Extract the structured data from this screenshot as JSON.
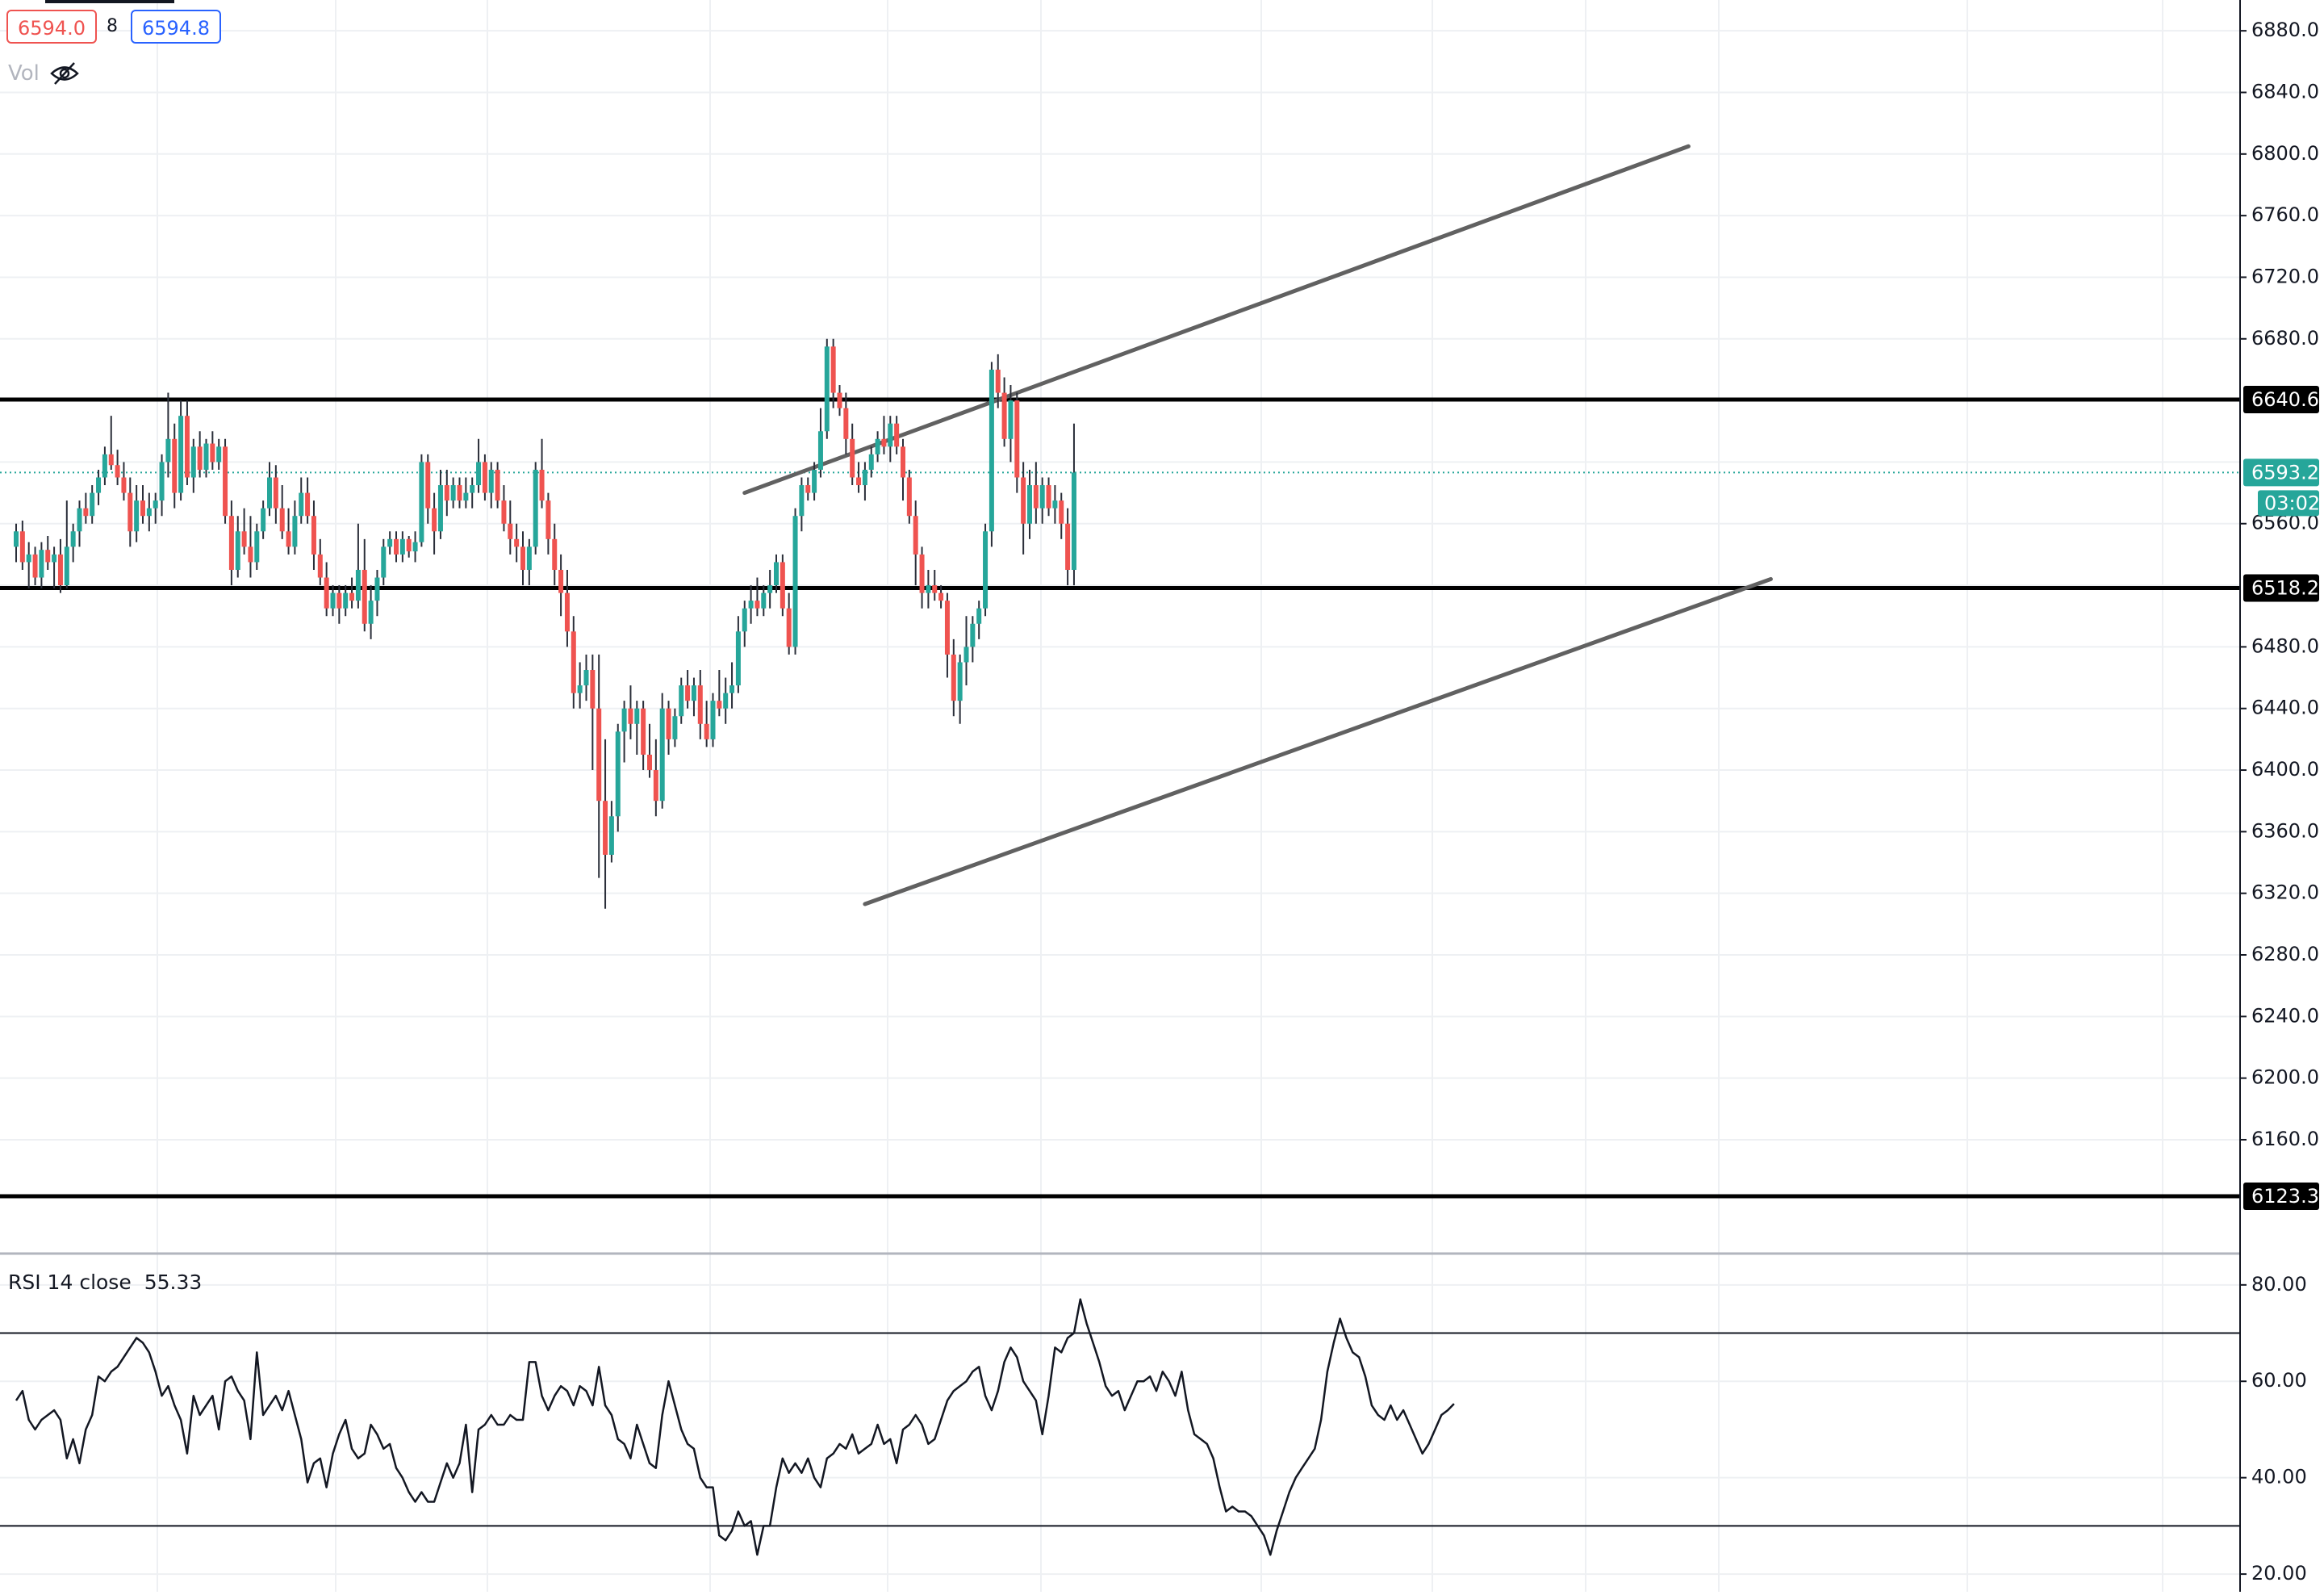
{
  "header": {
    "bid": "6594.0",
    "spread": "8",
    "ask": "6594.8",
    "volume_label": "Vol",
    "volume_icon": "eye-crossed-icon"
  },
  "colors": {
    "up": "#26a69a",
    "down": "#ef5350",
    "channel": "#616161",
    "level": "#000000",
    "current": "#26a69a",
    "grid": "#eef0f3"
  },
  "rsi": {
    "label": "RSI 14 close",
    "value": "55.33",
    "upper_band": 70,
    "lower_band": 30,
    "ticks": [
      "80.00",
      "60.00",
      "40.00",
      "20.00"
    ],
    "ylim": [
      17,
      86
    ]
  },
  "chart_data": {
    "type": "candlestick",
    "ylim": [
      6095,
      6900
    ],
    "y_ticks": [
      "6880.0",
      "6840.0",
      "6800.0",
      "6760.0",
      "6720.0",
      "6680.0",
      "6560.0",
      "6480.0",
      "6440.0",
      "6400.0",
      "6360.0",
      "6320.0",
      "6280.0",
      "6240.0",
      "6200.0",
      "6160.0"
    ],
    "levels": [
      {
        "label": "6640.6",
        "value": 6640.6
      },
      {
        "label": "6518.2",
        "value": 6518.2
      },
      {
        "label": "6123.3",
        "value": 6123.3
      }
    ],
    "current": {
      "price": "6593.2",
      "countdown": "03:02",
      "value": 6593.2
    },
    "channel_upper": {
      "x": [
        115,
        264
      ],
      "y": [
        6580,
        6805
      ]
    },
    "channel_lower": {
      "x": [
        134,
        277
      ],
      "y": [
        6313,
        6524
      ]
    },
    "candles": [
      [
        6545,
        6560,
        6535,
        6555
      ],
      [
        6555,
        6562,
        6530,
        6535
      ],
      [
        6535,
        6548,
        6518,
        6540
      ],
      [
        6540,
        6545,
        6520,
        6525
      ],
      [
        6525,
        6548,
        6518,
        6543
      ],
      [
        6543,
        6552,
        6530,
        6535
      ],
      [
        6535,
        6545,
        6518,
        6540
      ],
      [
        6540,
        6550,
        6515,
        6520
      ],
      [
        6520,
        6575,
        6518,
        6545
      ],
      [
        6545,
        6560,
        6535,
        6555
      ],
      [
        6555,
        6575,
        6545,
        6570
      ],
      [
        6570,
        6580,
        6560,
        6565
      ],
      [
        6565,
        6585,
        6560,
        6580
      ],
      [
        6580,
        6595,
        6572,
        6590
      ],
      [
        6590,
        6610,
        6585,
        6605
      ],
      [
        6605,
        6630,
        6595,
        6598
      ],
      [
        6598,
        6608,
        6585,
        6590
      ],
      [
        6590,
        6600,
        6575,
        6580
      ],
      [
        6580,
        6590,
        6545,
        6555
      ],
      [
        6555,
        6585,
        6548,
        6575
      ],
      [
        6575,
        6585,
        6560,
        6565
      ],
      [
        6565,
        6580,
        6555,
        6570
      ],
      [
        6570,
        6580,
        6560,
        6575
      ],
      [
        6575,
        6605,
        6565,
        6600
      ],
      [
        6600,
        6645,
        6590,
        6615
      ],
      [
        6615,
        6625,
        6570,
        6580
      ],
      [
        6580,
        6640,
        6575,
        6630
      ],
      [
        6630,
        6640,
        6585,
        6590
      ],
      [
        6590,
        6615,
        6580,
        6610
      ],
      [
        6610,
        6620,
        6590,
        6595
      ],
      [
        6595,
        6615,
        6590,
        6612
      ],
      [
        6612,
        6620,
        6595,
        6600
      ],
      [
        6600,
        6615,
        6595,
        6610
      ],
      [
        6610,
        6615,
        6560,
        6565
      ],
      [
        6565,
        6575,
        6520,
        6530
      ],
      [
        6530,
        6565,
        6525,
        6555
      ],
      [
        6555,
        6570,
        6540,
        6545
      ],
      [
        6545,
        6565,
        6525,
        6535
      ],
      [
        6535,
        6560,
        6530,
        6555
      ],
      [
        6555,
        6575,
        6550,
        6570
      ],
      [
        6570,
        6600,
        6565,
        6590
      ],
      [
        6590,
        6598,
        6560,
        6570
      ],
      [
        6570,
        6585,
        6550,
        6555
      ],
      [
        6555,
        6570,
        6540,
        6545
      ],
      [
        6545,
        6575,
        6540,
        6565
      ],
      [
        6565,
        6590,
        6560,
        6580
      ],
      [
        6580,
        6590,
        6560,
        6565
      ],
      [
        6565,
        6575,
        6530,
        6540
      ],
      [
        6540,
        6550,
        6520,
        6525
      ],
      [
        6525,
        6535,
        6500,
        6505
      ],
      [
        6505,
        6520,
        6500,
        6515
      ],
      [
        6515,
        6520,
        6495,
        6505
      ],
      [
        6505,
        6520,
        6500,
        6515
      ],
      [
        6515,
        6525,
        6505,
        6510
      ],
      [
        6510,
        6560,
        6505,
        6530
      ],
      [
        6530,
        6550,
        6490,
        6495
      ],
      [
        6495,
        6520,
        6485,
        6510
      ],
      [
        6510,
        6530,
        6500,
        6525
      ],
      [
        6525,
        6550,
        6520,
        6545
      ],
      [
        6545,
        6555,
        6540,
        6550
      ],
      [
        6550,
        6555,
        6535,
        6540
      ],
      [
        6540,
        6555,
        6535,
        6550
      ],
      [
        6550,
        6552,
        6538,
        6542
      ],
      [
        6542,
        6555,
        6535,
        6548
      ],
      [
        6548,
        6605,
        6545,
        6600
      ],
      [
        6600,
        6605,
        6560,
        6570
      ],
      [
        6570,
        6580,
        6540,
        6555
      ],
      [
        6555,
        6595,
        6550,
        6585
      ],
      [
        6585,
        6595,
        6565,
        6575
      ],
      [
        6575,
        6590,
        6570,
        6585
      ],
      [
        6585,
        6590,
        6570,
        6575
      ],
      [
        6575,
        6590,
        6570,
        6580
      ],
      [
        6580,
        6590,
        6570,
        6585
      ],
      [
        6585,
        6615,
        6580,
        6600
      ],
      [
        6600,
        6605,
        6575,
        6580
      ],
      [
        6580,
        6600,
        6570,
        6595
      ],
      [
        6595,
        6600,
        6570,
        6575
      ],
      [
        6575,
        6585,
        6555,
        6560
      ],
      [
        6560,
        6575,
        6540,
        6550
      ],
      [
        6550,
        6560,
        6535,
        6545
      ],
      [
        6545,
        6555,
        6520,
        6530
      ],
      [
        6530,
        6550,
        6520,
        6545
      ],
      [
        6545,
        6600,
        6540,
        6595
      ],
      [
        6595,
        6615,
        6570,
        6575
      ],
      [
        6575,
        6580,
        6540,
        6550
      ],
      [
        6550,
        6560,
        6520,
        6530
      ],
      [
        6530,
        6540,
        6500,
        6515
      ],
      [
        6515,
        6530,
        6480,
        6490
      ],
      [
        6490,
        6500,
        6440,
        6450
      ],
      [
        6450,
        6470,
        6440,
        6455
      ],
      [
        6455,
        6475,
        6445,
        6465
      ],
      [
        6465,
        6475,
        6400,
        6440
      ],
      [
        6440,
        6475,
        6330,
        6380
      ],
      [
        6380,
        6420,
        6310,
        6345
      ],
      [
        6345,
        6380,
        6340,
        6370
      ],
      [
        6370,
        6430,
        6360,
        6425
      ],
      [
        6425,
        6445,
        6405,
        6440
      ],
      [
        6440,
        6455,
        6420,
        6430
      ],
      [
        6430,
        6445,
        6410,
        6440
      ],
      [
        6440,
        6445,
        6400,
        6410
      ],
      [
        6410,
        6430,
        6395,
        6400
      ],
      [
        6400,
        6420,
        6370,
        6380
      ],
      [
        6380,
        6450,
        6375,
        6440
      ],
      [
        6440,
        6445,
        6410,
        6420
      ],
      [
        6420,
        6440,
        6415,
        6435
      ],
      [
        6435,
        6460,
        6430,
        6455
      ],
      [
        6455,
        6465,
        6440,
        6445
      ],
      [
        6445,
        6460,
        6435,
        6455
      ],
      [
        6455,
        6465,
        6420,
        6430
      ],
      [
        6430,
        6445,
        6415,
        6420
      ],
      [
        6420,
        6450,
        6415,
        6445
      ],
      [
        6445,
        6465,
        6435,
        6440
      ],
      [
        6440,
        6460,
        6430,
        6450
      ],
      [
        6450,
        6470,
        6440,
        6455
      ],
      [
        6455,
        6500,
        6450,
        6490
      ],
      [
        6490,
        6510,
        6480,
        6505
      ],
      [
        6505,
        6520,
        6495,
        6510
      ],
      [
        6510,
        6525,
        6500,
        6505
      ],
      [
        6505,
        6520,
        6500,
        6515
      ],
      [
        6515,
        6530,
        6505,
        6520
      ],
      [
        6520,
        6540,
        6515,
        6535
      ],
      [
        6535,
        6540,
        6500,
        6505
      ],
      [
        6505,
        6515,
        6475,
        6480
      ],
      [
        6480,
        6570,
        6475,
        6565
      ],
      [
        6565,
        6590,
        6555,
        6585
      ],
      [
        6585,
        6590,
        6575,
        6580
      ],
      [
        6580,
        6600,
        6575,
        6595
      ],
      [
        6595,
        6635,
        6590,
        6620
      ],
      [
        6620,
        6680,
        6615,
        6675
      ],
      [
        6675,
        6680,
        6635,
        6645
      ],
      [
        6645,
        6650,
        6630,
        6635
      ],
      [
        6635,
        6645,
        6605,
        6615
      ],
      [
        6615,
        6625,
        6585,
        6590
      ],
      [
        6590,
        6600,
        6580,
        6585
      ],
      [
        6585,
        6600,
        6575,
        6595
      ],
      [
        6595,
        6610,
        6590,
        6605
      ],
      [
        6605,
        6620,
        6600,
        6615
      ],
      [
        6615,
        6630,
        6605,
        6610
      ],
      [
        6610,
        6630,
        6600,
        6625
      ],
      [
        6625,
        6630,
        6605,
        6610
      ],
      [
        6610,
        6615,
        6575,
        6590
      ],
      [
        6590,
        6595,
        6560,
        6565
      ],
      [
        6565,
        6575,
        6520,
        6540
      ],
      [
        6540,
        6545,
        6505,
        6515
      ],
      [
        6515,
        6530,
        6505,
        6520
      ],
      [
        6520,
        6530,
        6510,
        6515
      ],
      [
        6515,
        6520,
        6505,
        6510
      ],
      [
        6510,
        6515,
        6460,
        6475
      ],
      [
        6475,
        6485,
        6435,
        6445
      ],
      [
        6445,
        6475,
        6430,
        6470
      ],
      [
        6470,
        6500,
        6455,
        6480
      ],
      [
        6480,
        6500,
        6470,
        6495
      ],
      [
        6495,
        6510,
        6485,
        6505
      ],
      [
        6505,
        6560,
        6500,
        6555
      ],
      [
        6555,
        6665,
        6545,
        6660
      ],
      [
        6660,
        6670,
        6635,
        6645
      ],
      [
        6645,
        6655,
        6610,
        6615
      ],
      [
        6615,
        6650,
        6600,
        6640
      ],
      [
        6640,
        6645,
        6580,
        6590
      ],
      [
        6590,
        6600,
        6540,
        6560
      ],
      [
        6560,
        6595,
        6550,
        6585
      ],
      [
        6585,
        6600,
        6560,
        6570
      ],
      [
        6570,
        6590,
        6560,
        6585
      ],
      [
        6585,
        6590,
        6565,
        6570
      ],
      [
        6570,
        6585,
        6560,
        6575
      ],
      [
        6575,
        6580,
        6550,
        6560
      ],
      [
        6560,
        6570,
        6520,
        6530
      ],
      [
        6530,
        6625,
        6520,
        6593.2
      ]
    ],
    "rsi_values": [
      56,
      58,
      52,
      50,
      52,
      53,
      54,
      52,
      44,
      48,
      43,
      50,
      53,
      61,
      60,
      62,
      63,
      65,
      67,
      69,
      68,
      66,
      62,
      57,
      59,
      55,
      52,
      45,
      57,
      53,
      55,
      57,
      50,
      60,
      61,
      58,
      56,
      48,
      66,
      53,
      55,
      57,
      54,
      58,
      53,
      48,
      39,
      43,
      44,
      38,
      45,
      49,
      52,
      46,
      44,
      45,
      51,
      49,
      46,
      47,
      42,
      40,
      37,
      35,
      37,
      35,
      35,
      39,
      43,
      40,
      43,
      51,
      37,
      50,
      51,
      53,
      51,
      51,
      53,
      52,
      52,
      64,
      64,
      57,
      54,
      57,
      59,
      58,
      55,
      59,
      58,
      55,
      63,
      55,
      53,
      48,
      47,
      44,
      51,
      47,
      43,
      42,
      53,
      60,
      55,
      50,
      47,
      46,
      40,
      38,
      38,
      28,
      27,
      29,
      33,
      30,
      31,
      24,
      30,
      30,
      38,
      44,
      41,
      43,
      41,
      44,
      40,
      38,
      44,
      45,
      47,
      46,
      49,
      45,
      46,
      47,
      51,
      47,
      48,
      43,
      50,
      51,
      53,
      51,
      47,
      48,
      52,
      56,
      58,
      59,
      60,
      62,
      63,
      57,
      54,
      58,
      64,
      67,
      65,
      60,
      58,
      56,
      49,
      57,
      67,
      66,
      69,
      70,
      77,
      72,
      68,
      64,
      59,
      57,
      58,
      54,
      57,
      60,
      60,
      61,
      58,
      62,
      60,
      57,
      62,
      54,
      49,
      48,
      47,
      44,
      38,
      33,
      34,
      33,
      33,
      32,
      30,
      28,
      24,
      29,
      33,
      37,
      40,
      42,
      44,
      46,
      52,
      62,
      68,
      73,
      69,
      66,
      65,
      61,
      55,
      53,
      52,
      55,
      52,
      54,
      51,
      48,
      45,
      47,
      50,
      53,
      54,
      55.33
    ]
  }
}
